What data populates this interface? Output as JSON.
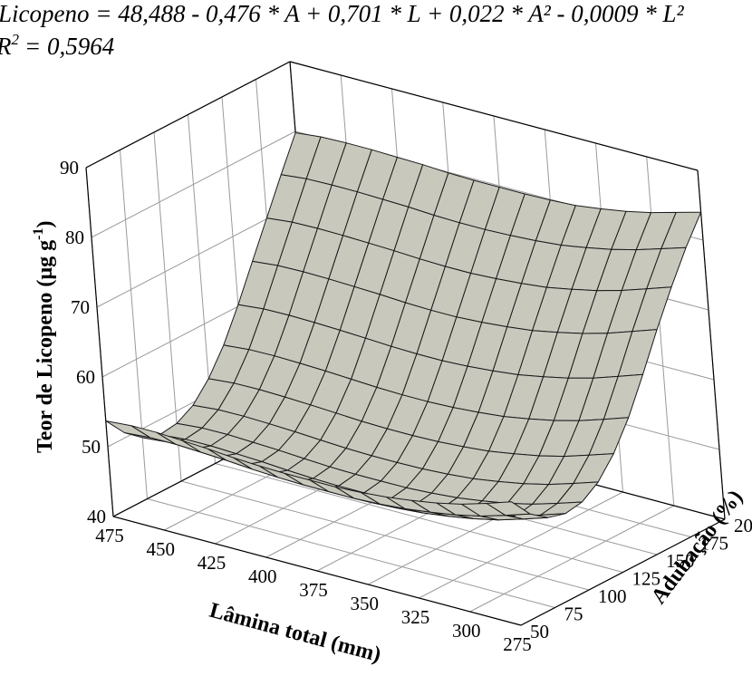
{
  "chart_data": {
    "type": "surface",
    "equation_text": "Licopeno = 48,488 - 0,476 * A + 0,701 * L + 0,022 * A² - 0,0009 * L²",
    "r2_label": "R",
    "r2_value_text": "= 0,5964",
    "xlabel": "Lâmina total (mm)",
    "ylabel": "Adubação (%)",
    "zlabel": "Teor de Licopeno (µg g",
    "zlabel_sup": "-1",
    "zlabel_close": ")",
    "x_ticks": [
      "475",
      "450",
      "425",
      "400",
      "375",
      "350",
      "325",
      "300",
      "275"
    ],
    "y_ticks": [
      "50",
      "75",
      "100",
      "125",
      "150",
      "175",
      "200"
    ],
    "z_ticks": [
      "40",
      "50",
      "60",
      "70",
      "80",
      "90"
    ],
    "xlim": [
      275,
      475
    ],
    "ylim": [
      50,
      200
    ],
    "zlim": [
      40,
      90
    ],
    "surface_values": {
      "lamina": [
        275,
        287.5,
        300,
        312.5,
        325,
        337.5,
        350,
        362.5,
        375,
        387.5,
        400,
        412.5,
        425,
        437.5,
        450,
        462.5,
        475
      ],
      "adubacao": [
        50,
        62.5,
        75,
        87.5,
        100,
        112.5,
        125,
        137.5,
        150,
        162.5,
        175,
        187.5,
        200
      ],
      "z_at_adubacao_50": [
        57.7,
        56.5,
        55.4,
        54.6,
        54.0,
        53.5,
        53.2,
        53.0,
        53.0,
        53.0,
        53.1,
        53.3,
        53.6,
        53.8,
        54.0,
        54.0,
        53.7
      ],
      "z_at_adubacao_200": [
        84.0,
        83.0,
        82.0,
        81.2,
        80.6,
        80.1,
        79.9,
        79.8,
        79.8,
        79.8,
        79.9,
        80.1,
        80.2,
        80.3,
        80.3,
        80.2,
        79.8
      ],
      "z_at_lamina_275": [
        57.7,
        54.7,
        52.9,
        52.2,
        52.6,
        54.2,
        57.0,
        60.9,
        65.8,
        71.0,
        75.8,
        80.2,
        84.0
      ],
      "z_at_lamina_375": [
        53.0,
        50.1,
        48.2,
        47.4,
        47.8,
        49.2,
        51.8,
        55.4,
        60.0,
        65.0,
        70.0,
        75.0,
        79.8
      ]
    },
    "colors": {
      "surface": "#c9c8bd",
      "mesh": "#1a1a1a",
      "grid": "#9a9a9a"
    }
  }
}
